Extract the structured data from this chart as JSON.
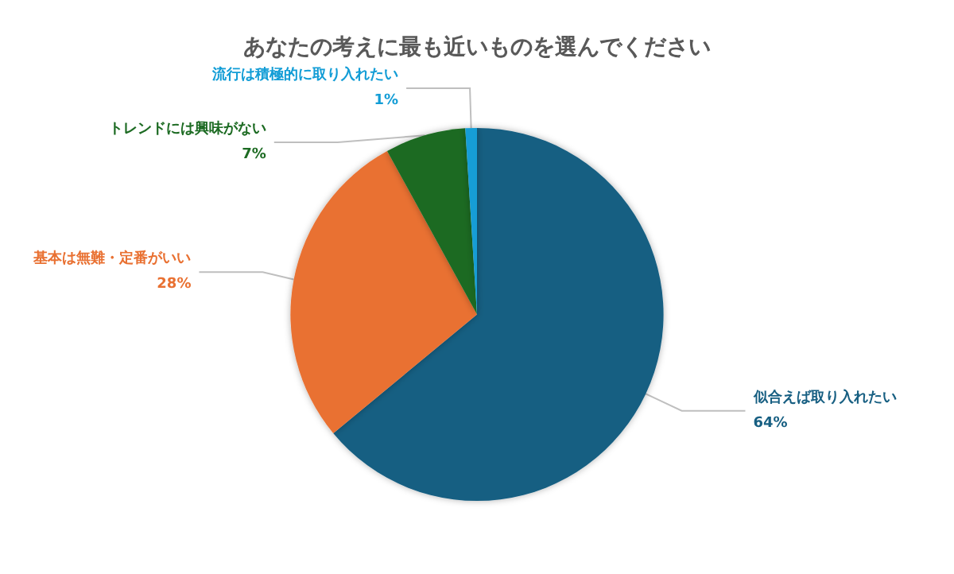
{
  "chart_data": {
    "type": "pie",
    "title": "あなたの考えに最も近いものを選んでください",
    "categories": [
      "似合えば取り入れたい",
      "基本は無難・定番がいい",
      "トレンドには興味がない",
      "流行は積極的に取り入れたい"
    ],
    "values": [
      64,
      28,
      7,
      1
    ],
    "colors": [
      "#175f82",
      "#e97132",
      "#1d6b23",
      "#139dd6"
    ],
    "value_labels": [
      "64%",
      "28%",
      "7%",
      "1%"
    ],
    "legend": false
  }
}
